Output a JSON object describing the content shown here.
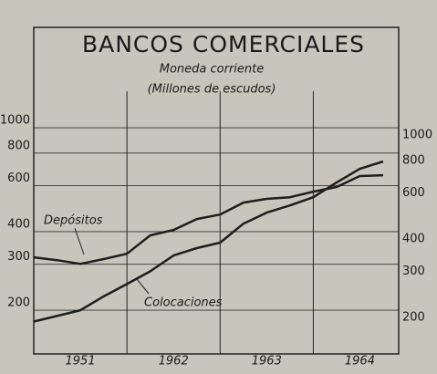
{
  "chart_data": {
    "type": "line",
    "title": "BANCOS COMERCIALES",
    "subtitle": "Moneda corriente",
    "y_label": "(Millones de escudos)",
    "log_scale": true,
    "x": [
      0,
      3,
      6,
      9,
      12,
      15,
      18,
      21,
      24,
      27,
      30,
      33,
      36,
      39,
      42,
      45
    ],
    "xlim": [
      0,
      47
    ],
    "xticks": [
      {
        "value": 6,
        "label": "1951"
      },
      {
        "value": 18,
        "label": "1962"
      },
      {
        "value": 30,
        "label": "1963"
      },
      {
        "value": 42,
        "label": "1964"
      }
    ],
    "year_dividers": [
      12,
      24,
      36
    ],
    "ylim": [
      136,
      2425
    ],
    "yticks": [
      200,
      300,
      400,
      600,
      800,
      1000
    ],
    "grid": true,
    "series": [
      {
        "name": "Depósitos",
        "color": "#1e1e1e",
        "values": [
          319,
          311,
          301,
          314,
          329,
          387,
          406,
          447,
          465,
          517,
          534,
          542,
          569,
          593,
          653,
          658
        ]
      },
      {
        "name": "Colocaciones",
        "color": "#1e1e1e",
        "values": [
          181,
          190,
          200,
          226,
          252,
          282,
          324,
          346,
          363,
          429,
          473,
          504,
          542,
          617,
          696,
          743
        ]
      }
    ]
  }
}
